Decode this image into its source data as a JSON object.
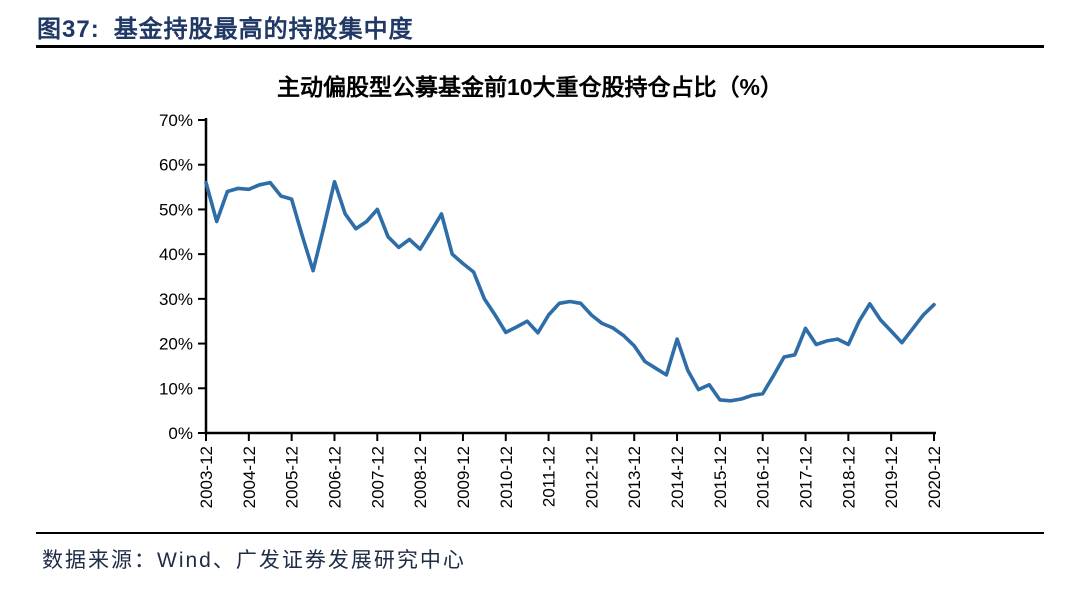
{
  "figure": {
    "label": "图37:",
    "title": "基金持股最高的持股集中度"
  },
  "chart_data": {
    "type": "line",
    "title": "主动偏股型公募基金前10大重仓股持仓占比（%）",
    "x": [
      "2003-12",
      "2004-03",
      "2004-06",
      "2004-09",
      "2004-12",
      "2005-03",
      "2005-06",
      "2005-09",
      "2005-12",
      "2006-03",
      "2006-06",
      "2006-09",
      "2006-12",
      "2007-03",
      "2007-06",
      "2007-09",
      "2007-12",
      "2008-03",
      "2008-06",
      "2008-09",
      "2008-12",
      "2009-03",
      "2009-06",
      "2009-09",
      "2009-12",
      "2010-03",
      "2010-06",
      "2010-09",
      "2010-12",
      "2011-03",
      "2011-06",
      "2011-09",
      "2011-12",
      "2012-03",
      "2012-06",
      "2012-09",
      "2012-12",
      "2013-03",
      "2013-06",
      "2013-09",
      "2013-12",
      "2014-03",
      "2014-06",
      "2014-09",
      "2014-12",
      "2015-03",
      "2015-06",
      "2015-09",
      "2015-12",
      "2016-03",
      "2016-06",
      "2016-09",
      "2016-12",
      "2017-03",
      "2017-06",
      "2017-09",
      "2017-12",
      "2018-03",
      "2018-06",
      "2018-09",
      "2018-12",
      "2019-03",
      "2019-06",
      "2019-09",
      "2019-12",
      "2020-03",
      "2020-06",
      "2020-09",
      "2020-12"
    ],
    "values": [
      56.0,
      47.3,
      54.0,
      54.7,
      54.5,
      55.5,
      56.0,
      53.0,
      52.3,
      44.0,
      36.3,
      46.0,
      56.2,
      49.0,
      45.7,
      47.3,
      50.0,
      43.9,
      41.5,
      43.3,
      41.1,
      45.0,
      49.0,
      40.0,
      37.9,
      36.0,
      30.0,
      26.4,
      22.5,
      23.7,
      25.0,
      22.4,
      26.4,
      29.0,
      29.4,
      29.0,
      26.4,
      24.5,
      23.5,
      21.8,
      19.5,
      16.0,
      14.5,
      13.0,
      21.0,
      14.0,
      9.7,
      10.8,
      7.4,
      7.2,
      7.6,
      8.4,
      8.8,
      12.8,
      17.0,
      17.5,
      23.4,
      19.8,
      20.6,
      21.0,
      19.8,
      25.0,
      28.9,
      25.3,
      22.8,
      20.2,
      23.3,
      26.4,
      28.7
    ],
    "x_tick_labels": [
      "2003-12",
      "2004-12",
      "2005-12",
      "2006-12",
      "2007-12",
      "2008-12",
      "2009-12",
      "2010-12",
      "2011-12",
      "2012-12",
      "2013-12",
      "2014-12",
      "2015-12",
      "2016-12",
      "2017-12",
      "2018-12",
      "2019-12",
      "2020-12"
    ],
    "y_tick_labels": [
      "0%",
      "10%",
      "20%",
      "30%",
      "40%",
      "50%",
      "60%",
      "70%"
    ],
    "ylim": [
      0,
      70
    ],
    "grid": false,
    "legend": false,
    "line_color": "#2E6DA8",
    "axis_color": "#000000"
  },
  "footer": {
    "source": "数据来源：Wind、广发证券发展研究中心"
  }
}
